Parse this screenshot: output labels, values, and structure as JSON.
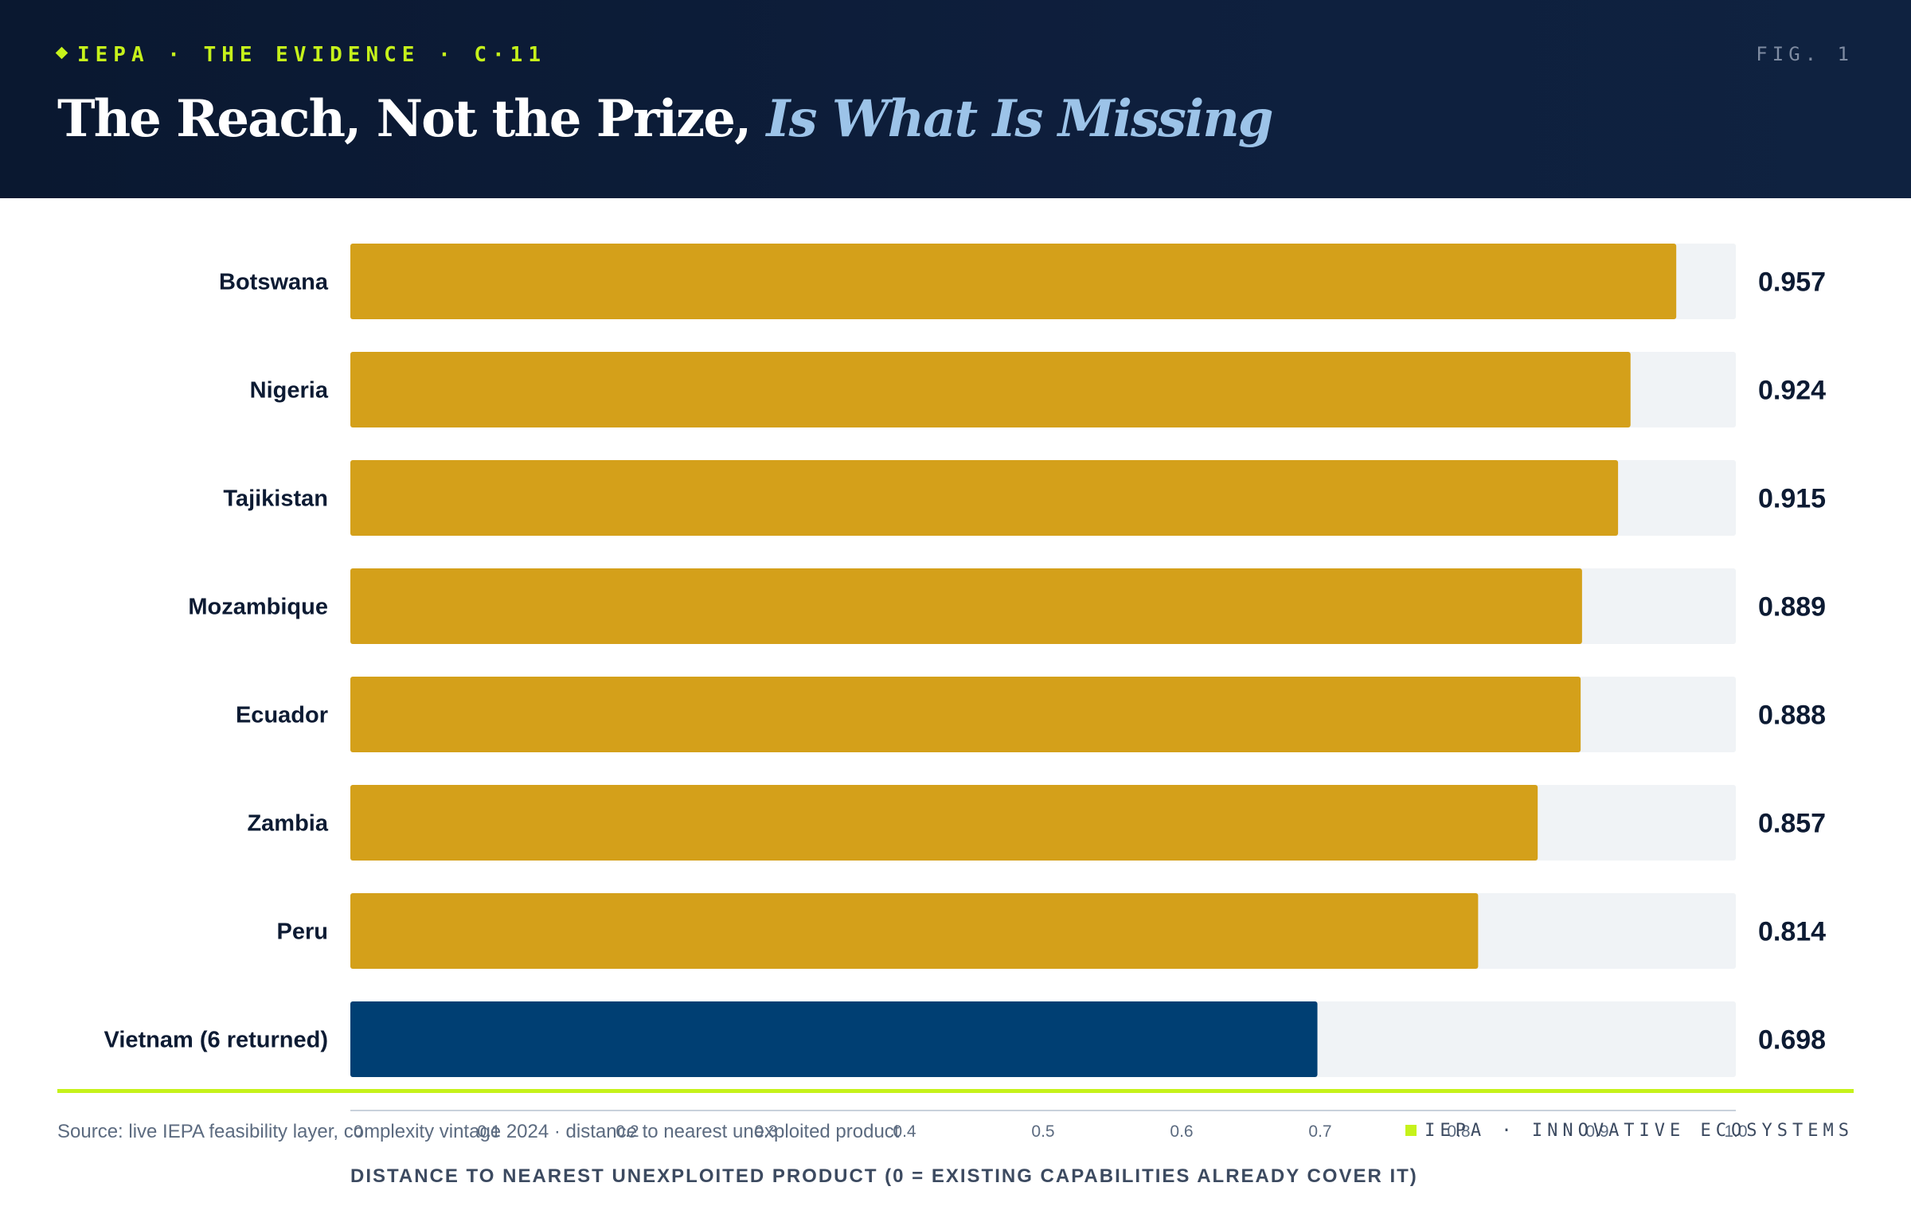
{
  "header": {
    "kicker": "IEPA · THE EVIDENCE · C·11",
    "fig": "FIG. 1",
    "title_main": "The Reach, Not the Prize,",
    "title_accent": "Is What Is Missing"
  },
  "chart_data": {
    "type": "bar",
    "orientation": "horizontal",
    "categories": [
      "Botswana",
      "Nigeria",
      "Tajikistan",
      "Mozambique",
      "Ecuador",
      "Zambia",
      "Peru",
      "Vietnam (6 returned)"
    ],
    "values": [
      0.957,
      0.924,
      0.915,
      0.889,
      0.888,
      0.857,
      0.814,
      0.698
    ],
    "value_labels": [
      "0.957",
      "0.924",
      "0.915",
      "0.889",
      "0.888",
      "0.857",
      "0.814",
      "0.698"
    ],
    "highlight_index": 7,
    "xlim": [
      0,
      1.0
    ],
    "xticks": [
      0,
      0.1,
      0.2,
      0.3,
      0.4,
      0.5,
      0.6,
      0.7,
      0.8,
      0.9,
      1.0
    ],
    "xtick_labels": [
      "0",
      "0.1",
      "0.2",
      "0.3",
      "0.4",
      "0.5",
      "0.6",
      "0.7",
      "0.8",
      "0.9",
      "1.0"
    ],
    "xlabel": "DISTANCE TO NEAREST UNEXPLOITED PRODUCT (0 = EXISTING CAPABILITIES ALREADY COVER IT)",
    "colors": {
      "bar": "#d4a01a",
      "highlight": "#003f73",
      "track": "#f0f3f6"
    }
  },
  "footer": {
    "source": "Source: live IEPA feasibility layer, complexity vintage 2024 · distance to nearest unexploited product",
    "brand": "IEPA · INNOVATIVE ECOSYSTEMS"
  },
  "colors": {
    "accent": "#c6f21b",
    "header_bg": "#0a1830"
  }
}
